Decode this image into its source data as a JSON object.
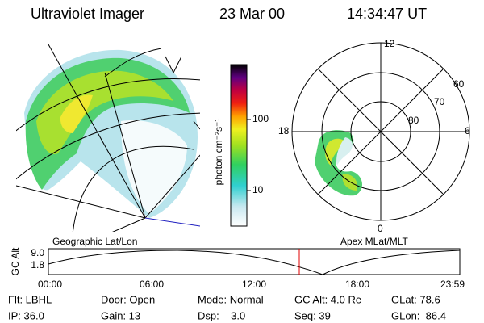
{
  "header": {
    "title": "Ultraviolet Imager",
    "date": "23 Mar 00",
    "time": "14:34:47 UT"
  },
  "colorbar": {
    "label": "photon cm⁻²s⁻¹",
    "ticks": [
      "100",
      "10"
    ]
  },
  "polar": {
    "mlt_labels": [
      "12",
      "6",
      "0",
      "18"
    ],
    "mlat_labels": [
      "60",
      "70",
      "80"
    ]
  },
  "panel_labels": {
    "left": "Geographic Lat/Lon",
    "right": "Apex MLat/MLT"
  },
  "altitude_plot": {
    "ylabel": "GC Alt",
    "yticks": [
      "9.0",
      "1.8"
    ],
    "xticks": [
      "00:00",
      "06:00",
      "12:00",
      "18:00",
      "23:59"
    ]
  },
  "info": [
    [
      "Flt: LBHL",
      "Door: Open",
      "Mode: Normal",
      "GC Alt: 4.0 Re",
      "GLat: 78.6"
    ],
    [
      "IP: 36.0",
      "Gain: 13",
      "Dsp:    3.0",
      "Seq: 39",
      "GLon:  86.4"
    ]
  ]
}
